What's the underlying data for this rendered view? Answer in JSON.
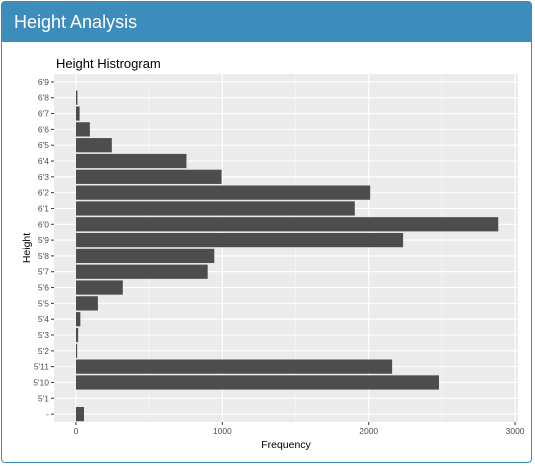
{
  "box": {
    "title": "Height Analysis"
  },
  "chart_data": {
    "type": "bar",
    "orientation": "horizontal",
    "title": "Height Histrogram",
    "xlabel": "Frequency",
    "ylabel": "Height",
    "xlim": [
      -150,
      3020
    ],
    "xticks": [
      0,
      1000,
      2000,
      3000
    ],
    "grid": true,
    "categories": [
      "-",
      "5'1",
      "5'10",
      "5'11",
      "5'2",
      "5'3",
      "5'4",
      "5'5",
      "5'6",
      "5'7",
      "5'8",
      "5'9",
      "6'0",
      "6'1",
      "6'2",
      "6'3",
      "6'4",
      "6'5",
      "6'6",
      "6'7",
      "6'8",
      "6'9"
    ],
    "values": [
      55,
      0,
      2480,
      2160,
      8,
      15,
      30,
      150,
      320,
      900,
      945,
      2235,
      2885,
      1905,
      2010,
      995,
      755,
      245,
      95,
      25,
      10,
      0
    ],
    "bar_color": "#4d4d4d",
    "panel_color": "#ebebeb"
  }
}
